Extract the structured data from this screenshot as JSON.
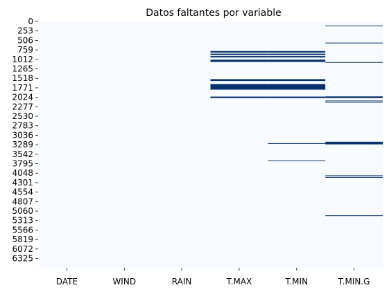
{
  "chart_data": {
    "type": "heatmap",
    "title": "Datos faltantes por variable",
    "xlabel": "",
    "ylabel": "",
    "columns": [
      "DATE",
      "WIND",
      "RAIN",
      "T.MAX",
      "T.MIN",
      "T.MIN.G"
    ],
    "row_count": 6574,
    "row_ticks": [
      0,
      253,
      506,
      759,
      1012,
      1265,
      1518,
      1771,
      2024,
      2277,
      2530,
      2783,
      3036,
      3289,
      3542,
      3795,
      4048,
      4301,
      4554,
      4807,
      5060,
      5313,
      5566,
      5819,
      6072,
      6325
    ],
    "colors": {
      "present": "#f7fbff",
      "missing": "#08306b"
    },
    "grid": false,
    "legend": "none",
    "missing_ranges": {
      "DATE": [],
      "WIND": [],
      "RAIN": [],
      "T.MAX": [
        [
          790,
          830
        ],
        [
          860,
          895
        ],
        [
          925,
          960
        ],
        [
          1020,
          1080
        ],
        [
          1540,
          1590
        ],
        [
          1670,
          1820
        ],
        [
          2005,
          2045
        ]
      ],
      "T.MIN": [
        [
          790,
          830
        ],
        [
          860,
          895
        ],
        [
          925,
          960
        ],
        [
          1020,
          1080
        ],
        [
          1540,
          1590
        ],
        [
          1670,
          1820
        ],
        [
          2005,
          2045
        ],
        [
          3248,
          3262
        ],
        [
          3710,
          3724
        ]
      ],
      "T.MIN.G": [
        [
          110,
          122
        ],
        [
          566,
          580
        ],
        [
          1085,
          1097
        ],
        [
          2000,
          2045
        ],
        [
          2112,
          2124
        ],
        [
          2150,
          2162
        ],
        [
          3210,
          3280
        ],
        [
          4107,
          4119
        ],
        [
          4152,
          4164
        ],
        [
          5174,
          5186
        ]
      ]
    }
  }
}
